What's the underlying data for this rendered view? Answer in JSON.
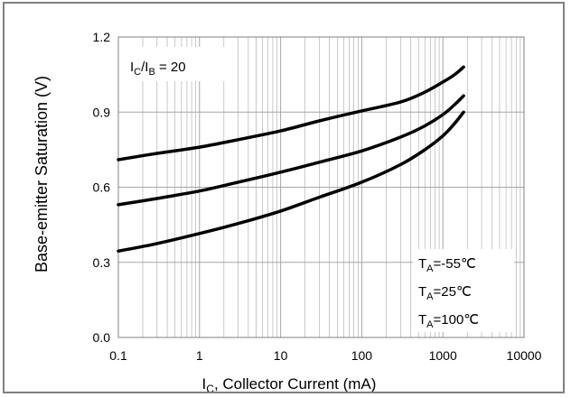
{
  "chart_data": {
    "type": "line",
    "title": "",
    "xlabel_main": "I",
    "xlabel_sub": "C",
    "xlabel_rest": ", Collector Current (mA)",
    "ylabel": "Base-emitter  Saturation (V)",
    "x_scale": "log",
    "xlim": [
      0.1,
      10000
    ],
    "ylim": [
      0.0,
      1.2
    ],
    "x_ticks": [
      0.1,
      1,
      10,
      100,
      1000,
      10000
    ],
    "x_tick_labels": [
      "0.1",
      "1",
      "10",
      "100",
      "1000",
      "10000"
    ],
    "y_ticks": [
      0.0,
      0.3,
      0.6,
      0.9,
      1.2
    ],
    "y_tick_labels": [
      "0.0",
      "0.3",
      "0.6",
      "0.9",
      "1.2"
    ],
    "grid": true,
    "condition": {
      "a": "I",
      "a_sub": "C",
      "mid": "/I",
      "b_sub": "B",
      "rest": " = 20"
    },
    "legend": [
      {
        "main": "T",
        "sub": "A",
        "rest": "=-55℃"
      },
      {
        "main": "T",
        "sub": "A",
        "rest": "=25℃"
      },
      {
        "main": "T",
        "sub": "A",
        "rest": "=100℃"
      }
    ],
    "series": [
      {
        "x": [
          0.1,
          0.3,
          1,
          3,
          10,
          30,
          100,
          300,
          600,
          1000,
          1400,
          1800
        ],
        "y": [
          0.71,
          0.735,
          0.76,
          0.79,
          0.825,
          0.865,
          0.905,
          0.94,
          0.98,
          1.02,
          1.05,
          1.08
        ]
      },
      {
        "x": [
          0.1,
          0.3,
          1,
          3,
          10,
          30,
          100,
          300,
          600,
          1000,
          1400,
          1800
        ],
        "y": [
          0.53,
          0.555,
          0.585,
          0.62,
          0.66,
          0.7,
          0.745,
          0.8,
          0.845,
          0.89,
          0.93,
          0.965
        ]
      },
      {
        "x": [
          0.1,
          0.3,
          1,
          3,
          10,
          30,
          100,
          300,
          600,
          1000,
          1400,
          1800
        ],
        "y": [
          0.345,
          0.375,
          0.415,
          0.455,
          0.505,
          0.56,
          0.62,
          0.69,
          0.75,
          0.805,
          0.855,
          0.9
        ]
      }
    ]
  }
}
